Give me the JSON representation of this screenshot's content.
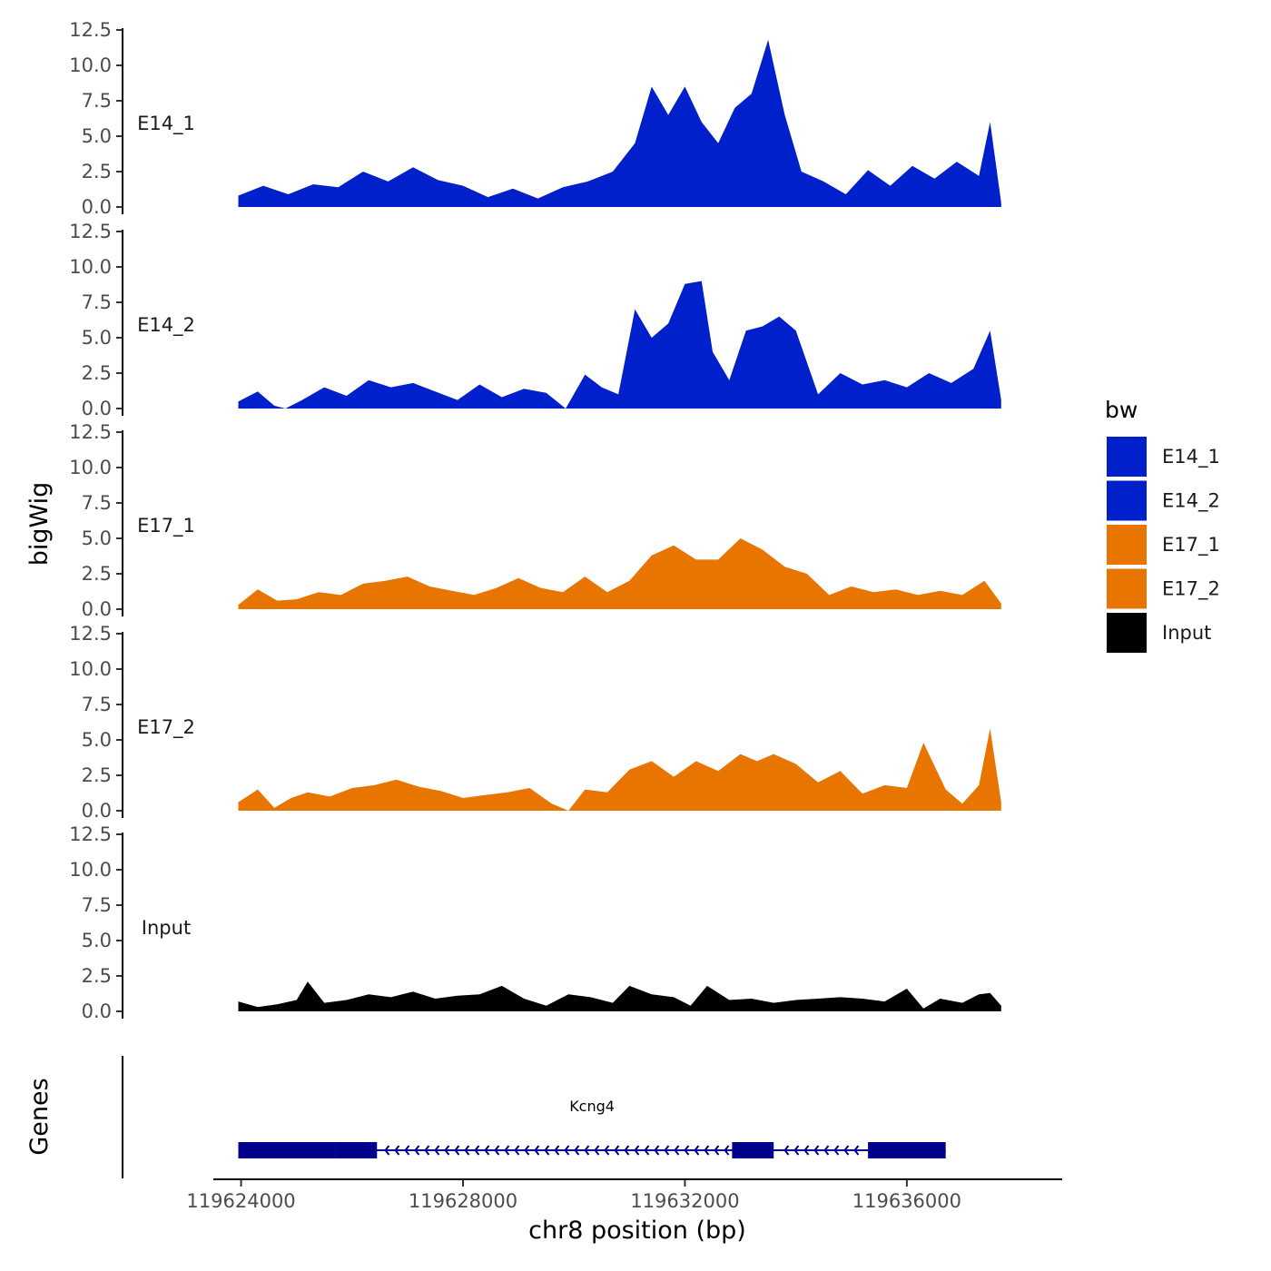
{
  "chart_data": {
    "type": "area",
    "title": "",
    "ylabel": "bigWig",
    "xlabel": "chr8 position (bp)",
    "chromosome": "chr8",
    "xlim": [
      119623500,
      119638800
    ],
    "data_range": [
      119623950,
      119637700
    ],
    "ylim": [
      0,
      12.5
    ],
    "y_ticks": [
      0.0,
      2.5,
      5.0,
      7.5,
      10.0,
      12.5
    ],
    "y_tick_labels": [
      "0.0",
      "2.5",
      "5.0",
      "7.5",
      "10.0",
      "12.5"
    ],
    "x_ticks": [
      119624000,
      119628000,
      119632000,
      119636000
    ],
    "x_tick_labels": [
      "119624000",
      "119628000",
      "119632000",
      "119636000"
    ],
    "genes_track_label": "Genes",
    "legend": {
      "title": "bw",
      "position": "right",
      "entries": [
        "E14_1",
        "E14_2",
        "E17_1",
        "E17_2",
        "Input"
      ]
    },
    "series": [
      {
        "name": "E14_1",
        "color": "#0020CC",
        "x": [
          119623950,
          119624400,
          119624850,
          119625300,
          119625750,
          119626200,
          119626650,
          119627100,
          119627550,
          119628000,
          119628450,
          119628900,
          119629350,
          119629800,
          119630250,
          119630700,
          119631100,
          119631400,
          119631700,
          119632000,
          119632300,
          119632600,
          119632900,
          119633200,
          119633500,
          119633800,
          119634100,
          119634500,
          119634900,
          119635300,
          119635700,
          119636100,
          119636500,
          119636900,
          119637300,
          119637500,
          119637700
        ],
        "y": [
          0.8,
          1.5,
          0.9,
          1.6,
          1.4,
          2.5,
          1.8,
          2.8,
          1.9,
          1.5,
          0.7,
          1.3,
          0.6,
          1.4,
          1.8,
          2.5,
          4.5,
          8.5,
          6.5,
          8.5,
          6.0,
          4.5,
          7.0,
          8.0,
          11.8,
          6.5,
          2.5,
          1.8,
          0.9,
          2.6,
          1.5,
          2.9,
          2.0,
          3.2,
          2.2,
          6.0,
          0.3
        ]
      },
      {
        "name": "E14_2",
        "color": "#0020CC",
        "x": [
          119623950,
          119624300,
          119624600,
          119624800,
          119625100,
          119625500,
          119625900,
          119626300,
          119626700,
          119627100,
          119627500,
          119627900,
          119628300,
          119628700,
          119629100,
          119629500,
          119629850,
          119630200,
          119630500,
          119630800,
          119631100,
          119631400,
          119631700,
          119632000,
          119632300,
          119632500,
          119632800,
          119633100,
          119633400,
          119633700,
          119634000,
          119634400,
          119634800,
          119635200,
          119635600,
          119636000,
          119636400,
          119636800,
          119637200,
          119637500,
          119637700
        ],
        "y": [
          0.5,
          1.2,
          0.2,
          0.0,
          0.6,
          1.5,
          0.9,
          2.0,
          1.5,
          1.8,
          1.2,
          0.6,
          1.7,
          0.8,
          1.4,
          1.1,
          0.0,
          2.4,
          1.5,
          1.0,
          7.0,
          5.0,
          6.0,
          8.8,
          9.0,
          4.0,
          2.0,
          5.5,
          5.8,
          6.5,
          5.5,
          1.0,
          2.5,
          1.7,
          2.0,
          1.5,
          2.5,
          1.8,
          2.8,
          5.5,
          0.6
        ]
      },
      {
        "name": "E17_1",
        "color": "#E87500",
        "x": [
          119623950,
          119624300,
          119624650,
          119625000,
          119625400,
          119625800,
          119626200,
          119626600,
          119627000,
          119627400,
          119627800,
          119628200,
          119628600,
          119629000,
          119629400,
          119629800,
          119630200,
          119630600,
          119631000,
          119631400,
          119631800,
          119632200,
          119632600,
          119633000,
          119633400,
          119633800,
          119634200,
          119634600,
          119635000,
          119635400,
          119635800,
          119636200,
          119636600,
          119637000,
          119637400,
          119637700
        ],
        "y": [
          0.3,
          1.4,
          0.6,
          0.7,
          1.2,
          1.0,
          1.8,
          2.0,
          2.3,
          1.6,
          1.3,
          1.0,
          1.5,
          2.2,
          1.5,
          1.2,
          2.3,
          1.2,
          2.0,
          3.8,
          4.5,
          3.5,
          3.5,
          5.0,
          4.2,
          3.0,
          2.5,
          1.0,
          1.6,
          1.2,
          1.4,
          1.0,
          1.3,
          1.0,
          2.0,
          0.4
        ]
      },
      {
        "name": "E17_2",
        "color": "#E87500",
        "x": [
          119623950,
          119624300,
          119624600,
          119624900,
          119625200,
          119625600,
          119626000,
          119626400,
          119626800,
          119627200,
          119627600,
          119628000,
          119628400,
          119628800,
          119629200,
          119629600,
          119629900,
          119630200,
          119630600,
          119631000,
          119631400,
          119631800,
          119632200,
          119632600,
          119633000,
          119633300,
          119633600,
          119634000,
          119634400,
          119634800,
          119635200,
          119635600,
          119636000,
          119636300,
          119636700,
          119637000,
          119637300,
          119637500,
          119637700
        ],
        "y": [
          0.6,
          1.5,
          0.2,
          0.9,
          1.3,
          1.0,
          1.6,
          1.8,
          2.2,
          1.7,
          1.4,
          0.9,
          1.1,
          1.3,
          1.6,
          0.5,
          0.0,
          1.5,
          1.3,
          2.9,
          3.5,
          2.4,
          3.5,
          2.8,
          4.0,
          3.5,
          4.0,
          3.3,
          2.0,
          2.8,
          1.2,
          1.8,
          1.6,
          4.8,
          1.5,
          0.5,
          1.8,
          5.8,
          0.6
        ]
      },
      {
        "name": "Input",
        "color": "#000000",
        "x": [
          119623950,
          119624300,
          119624650,
          119625000,
          119625200,
          119625500,
          119625900,
          119626300,
          119626700,
          119627100,
          119627500,
          119627900,
          119628300,
          119628700,
          119629100,
          119629500,
          119629900,
          119630300,
          119630700,
          119631000,
          119631400,
          119631800,
          119632100,
          119632400,
          119632800,
          119633200,
          119633600,
          119634000,
          119634400,
          119634800,
          119635200,
          119635600,
          119636000,
          119636300,
          119636600,
          119637000,
          119637300,
          119637500,
          119637700
        ],
        "y": [
          0.7,
          0.3,
          0.5,
          0.8,
          2.1,
          0.6,
          0.8,
          1.2,
          1.0,
          1.4,
          0.9,
          1.1,
          1.2,
          1.8,
          0.9,
          0.4,
          1.2,
          1.0,
          0.6,
          1.8,
          1.2,
          1.0,
          0.4,
          1.8,
          0.8,
          0.9,
          0.6,
          0.8,
          0.9,
          1.0,
          0.9,
          0.7,
          1.6,
          0.2,
          0.9,
          0.6,
          1.2,
          1.3,
          0.4
        ]
      }
    ],
    "gene": {
      "name": "Kcng4",
      "chromosome": "chr8",
      "strand": "-",
      "start": 119623950,
      "end": 119636700,
      "exons": [
        [
          119623950,
          119625700
        ],
        [
          119625700,
          119626450
        ],
        [
          119632850,
          119633600
        ],
        [
          119635300,
          119636700
        ]
      ]
    }
  }
}
